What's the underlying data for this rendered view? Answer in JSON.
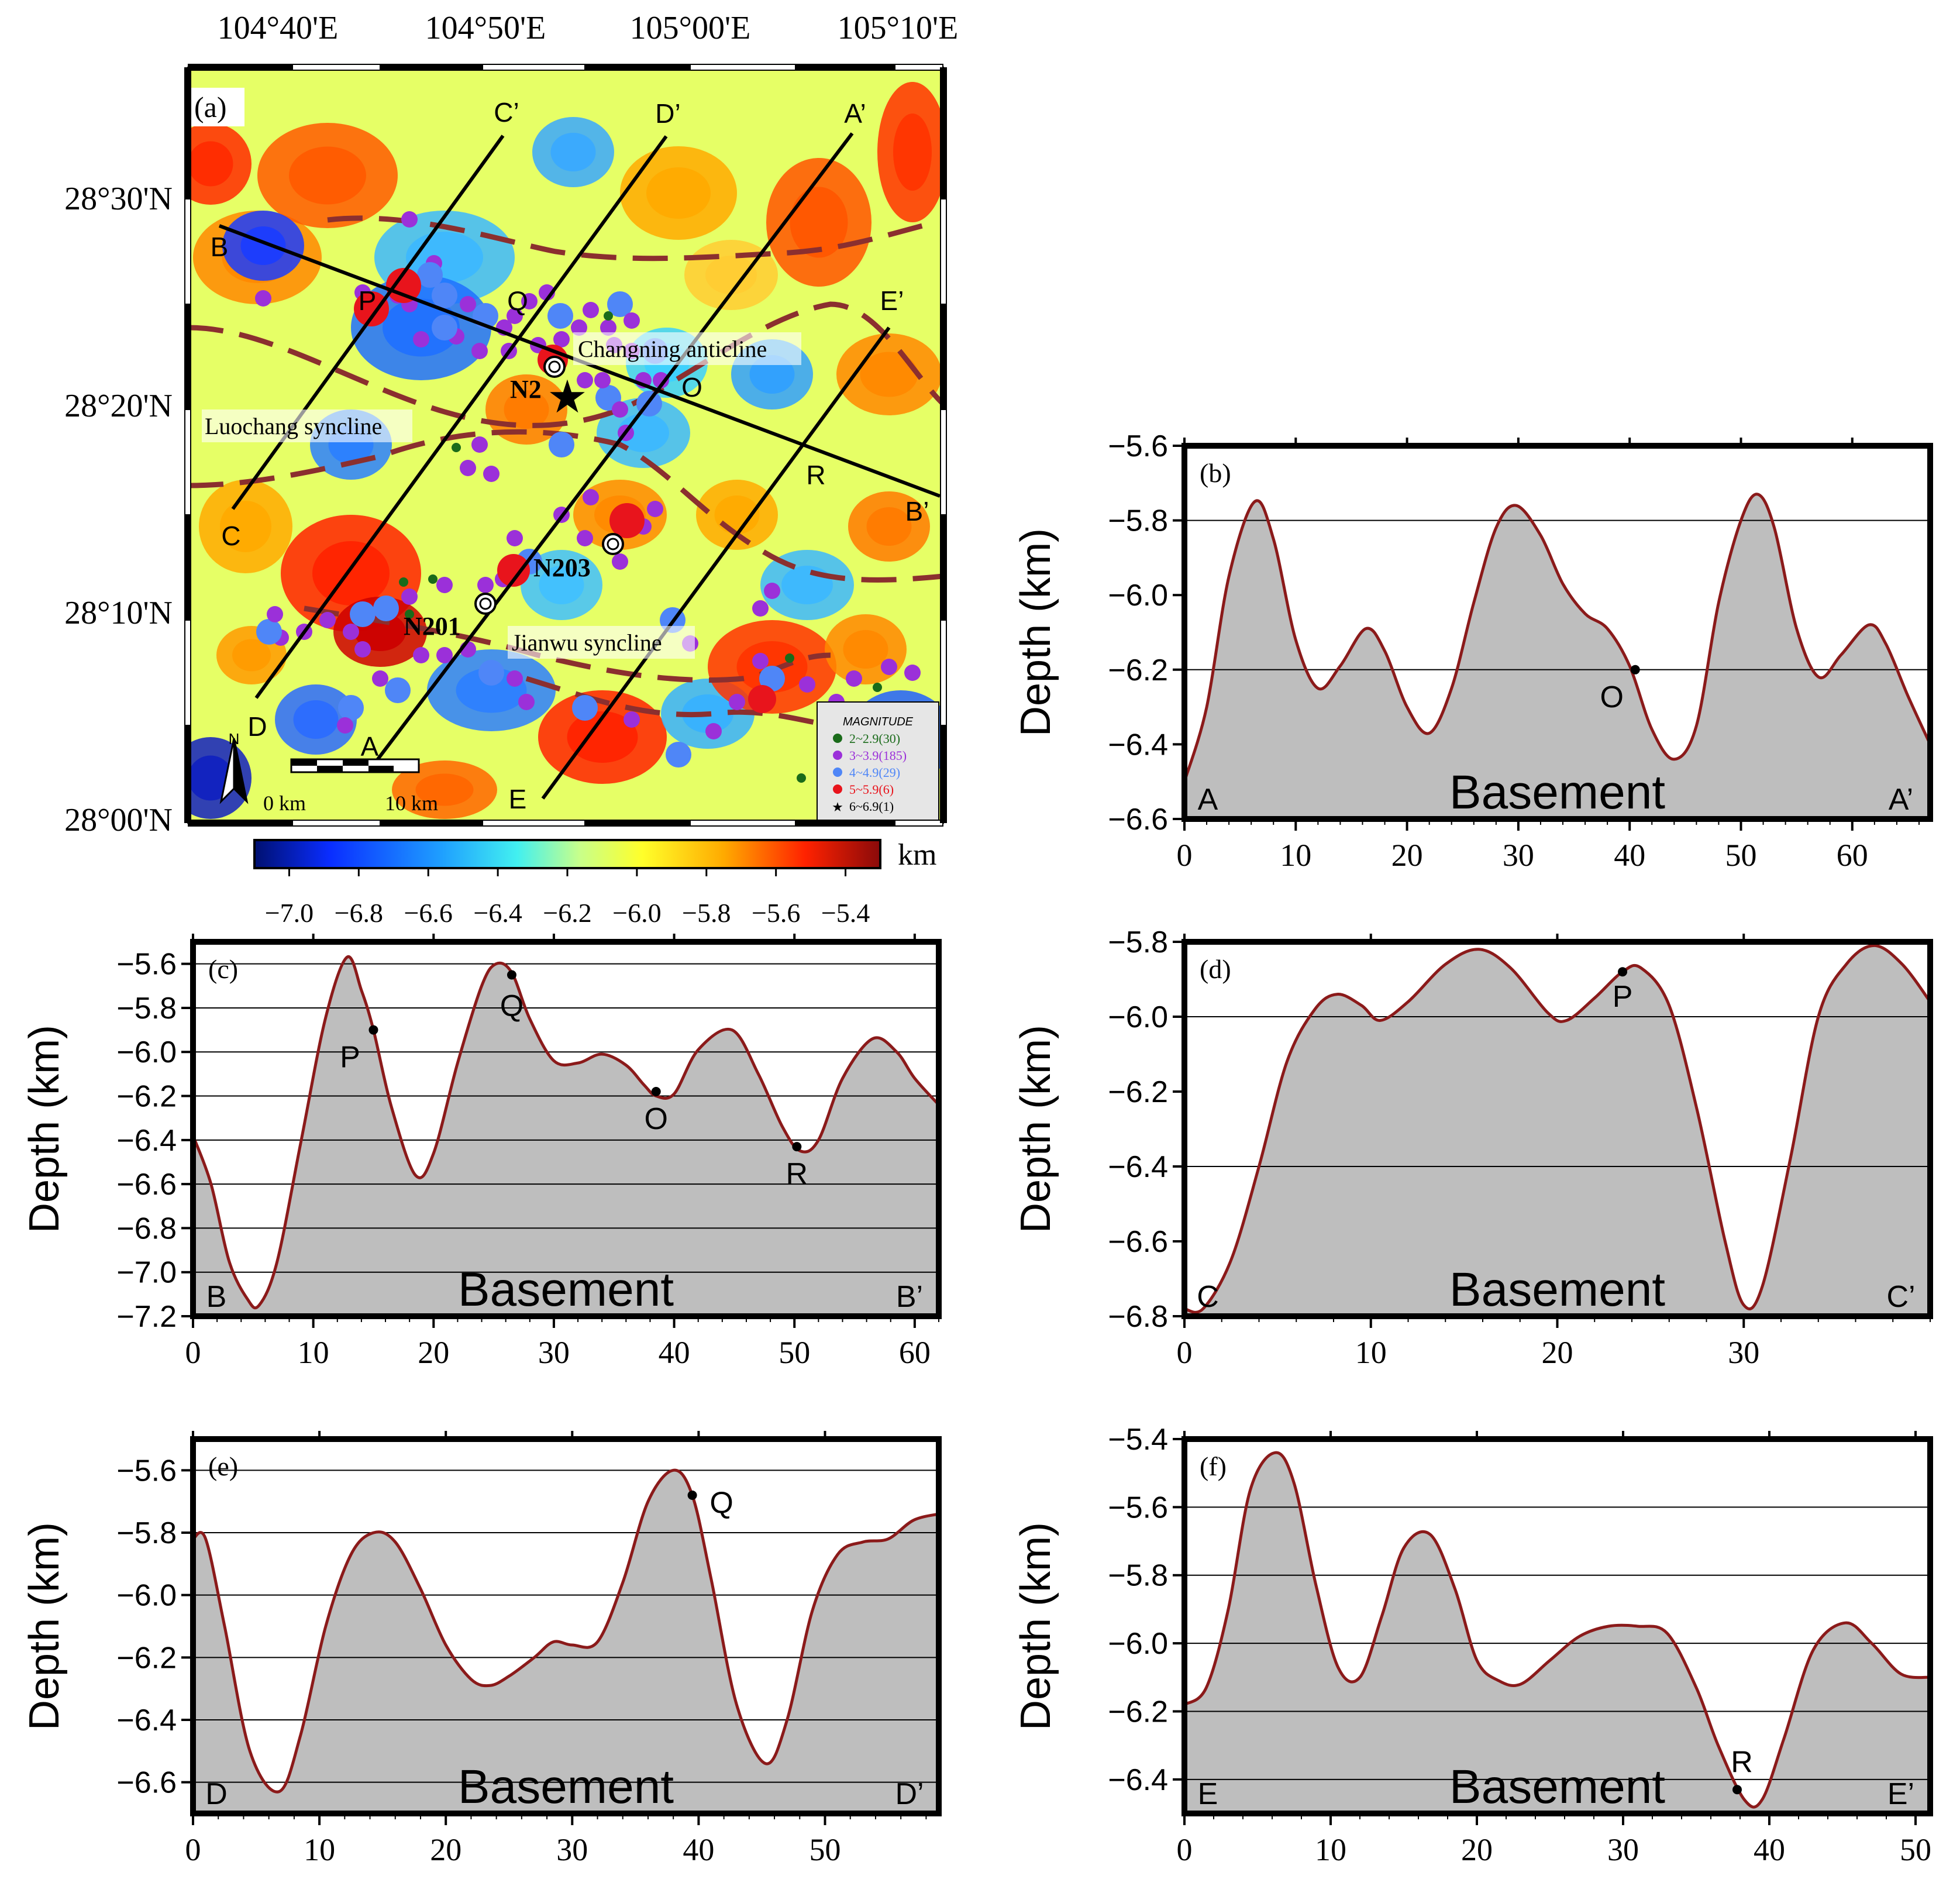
{
  "colors": {
    "curve": "#8b1a1a",
    "fill": "#bebebe",
    "fault": "#8b2f2f",
    "mag_green": "#1a6b1a",
    "mag_purple": "#9b30d9",
    "mag_blue": "#4f86f7",
    "mag_red": "#e8141c",
    "mag_black": "#000000"
  },
  "map": {
    "panel_label": "(a)",
    "lon_ticks": [
      "104°40'E",
      "104°50'E",
      "105°00'E",
      "105°10'E"
    ],
    "lat_ticks": [
      "28°30'N",
      "28°20'N",
      "28°10'N",
      "28°00'N"
    ],
    "profiles": [
      {
        "start": "A",
        "end": "A’"
      },
      {
        "start": "B",
        "end": "B’"
      },
      {
        "start": "C",
        "end": "C’"
      },
      {
        "start": "D",
        "end": "D’"
      },
      {
        "start": "E",
        "end": "E’"
      }
    ],
    "points": [
      "O",
      "P",
      "Q",
      "R"
    ],
    "structures": [
      "Changning anticline",
      "Luochang syncline",
      "Jianwu syncline"
    ],
    "wells": [
      "N2",
      "N203",
      "N201"
    ],
    "legend": {
      "title": "MAGNITUDE",
      "items": [
        {
          "label": "2~2.9(30)",
          "symbol": "green-dot-icon"
        },
        {
          "label": "3~3.9(185)",
          "symbol": "purple-dot-icon"
        },
        {
          "label": "4~4.9(29)",
          "symbol": "blue-dot-icon"
        },
        {
          "label": "5~5.9(6)",
          "symbol": "red-dot-icon"
        },
        {
          "label": "6~6.9(1)",
          "symbol": "star-icon"
        }
      ]
    },
    "scalebar": {
      "start": "0 km",
      "end": "10 km"
    },
    "north": "N",
    "colorbar": {
      "unit": "km",
      "ticks": [
        "−7.0",
        "−6.8",
        "−6.6",
        "−6.4",
        "−6.2",
        "−6.0",
        "−5.8",
        "−5.6",
        "−5.4"
      ],
      "range": [
        -7.1,
        -5.3
      ]
    }
  },
  "chart_data": [
    {
      "panel": "(b)",
      "type": "area",
      "ylabel": "Depth (km)",
      "fill_label": "Basement",
      "left_label": "A",
      "right_label": "A’",
      "xlim": [
        0,
        67
      ],
      "ylim": [
        -6.6,
        -5.6
      ],
      "xticks": [
        0,
        10,
        20,
        30,
        40,
        50,
        60
      ],
      "yticks": [
        "−5.6",
        "−5.8",
        "−6.0",
        "−6.2",
        "−6.4",
        "−6.6"
      ],
      "ytick_values": [
        -5.6,
        -5.8,
        -6.0,
        -6.2,
        -6.4,
        -6.6
      ],
      "gridlines": [
        -5.8,
        -6.2
      ],
      "x": [
        0,
        2,
        4,
        6.3,
        8,
        10,
        12,
        14,
        16.3,
        18,
        20,
        22,
        24,
        26,
        28,
        29.8,
        32,
        34,
        36,
        38,
        40,
        42,
        44,
        46,
        48,
        50,
        51.5,
        53,
        55,
        57,
        59,
        61.5,
        63,
        65,
        67
      ],
      "y": [
        -6.5,
        -6.3,
        -5.95,
        -5.75,
        -5.85,
        -6.12,
        -6.25,
        -6.19,
        -6.09,
        -6.15,
        -6.3,
        -6.37,
        -6.25,
        -6.02,
        -5.82,
        -5.76,
        -5.84,
        -5.97,
        -6.05,
        -6.09,
        -6.19,
        -6.36,
        -6.44,
        -6.35,
        -6.02,
        -5.8,
        -5.73,
        -5.82,
        -6.09,
        -6.22,
        -6.16,
        -6.08,
        -6.13,
        -6.27,
        -6.4
      ],
      "markers": [
        {
          "x": 40.5,
          "y": -6.2,
          "label": "O"
        }
      ]
    },
    {
      "panel": "(c)",
      "type": "area",
      "ylabel": "Depth (km)",
      "fill_label": "Basement",
      "left_label": "B",
      "right_label": "B’",
      "xlim": [
        0,
        62
      ],
      "ylim": [
        -7.2,
        -5.5
      ],
      "xticks": [
        0,
        10,
        20,
        30,
        40,
        50,
        60
      ],
      "yticks": [
        "−5.6",
        "−5.8",
        "−6.0",
        "−6.2",
        "−6.4",
        "−6.6",
        "−6.8",
        "−7.0",
        "−7.2"
      ],
      "ytick_values": [
        -5.6,
        -5.8,
        -6.0,
        -6.2,
        -6.4,
        -6.6,
        -6.8,
        -7.0,
        -7.2
      ],
      "gridlines": [
        -5.6,
        -5.8,
        -6.0,
        -6.2,
        -6.4,
        -6.6,
        -6.8,
        -7.0
      ],
      "x": [
        0,
        1.5,
        3,
        4.5,
        5.5,
        7,
        9,
        11,
        12.8,
        14,
        15,
        16.5,
        18.5,
        20,
        22,
        24,
        25.2,
        26.5,
        28,
        30,
        32,
        34,
        36,
        37.5,
        38.5,
        40,
        42,
        44.8,
        47,
        49,
        50.5,
        52,
        54,
        56.5,
        58.5,
        60,
        62
      ],
      "y": [
        -6.38,
        -6.6,
        -6.95,
        -7.12,
        -7.15,
        -6.95,
        -6.4,
        -5.85,
        -5.57,
        -5.72,
        -5.9,
        -6.25,
        -6.56,
        -6.46,
        -6.05,
        -5.7,
        -5.6,
        -5.64,
        -5.85,
        -6.04,
        -6.05,
        -6.01,
        -6.06,
        -6.15,
        -6.2,
        -6.19,
        -5.99,
        -5.9,
        -6.1,
        -6.34,
        -6.45,
        -6.4,
        -6.12,
        -5.94,
        -6.0,
        -6.12,
        -6.24
      ],
      "markers": [
        {
          "x": 15,
          "y": -5.9,
          "label": "P"
        },
        {
          "x": 26.5,
          "y": -5.65,
          "label": "Q"
        },
        {
          "x": 38.5,
          "y": -6.18,
          "label": "O"
        },
        {
          "x": 50.2,
          "y": -6.43,
          "label": "R"
        }
      ]
    },
    {
      "panel": "(d)",
      "type": "area",
      "ylabel": "Depth (km)",
      "fill_label": "Basement",
      "left_label": "C",
      "right_label": "C’",
      "xlim": [
        0,
        40
      ],
      "ylim": [
        -6.8,
        -5.8
      ],
      "xticks": [
        0,
        10,
        20,
        30
      ],
      "yticks": [
        "−5.8",
        "−6.0",
        "−6.2",
        "−6.4",
        "−6.6",
        "−6.8"
      ],
      "ytick_values": [
        -5.8,
        -6.0,
        -6.2,
        -6.4,
        -6.6,
        -6.8
      ],
      "gridlines": [
        -6.0,
        -6.4
      ],
      "x": [
        0,
        1,
        2.5,
        4,
        5.5,
        7,
        8.2,
        9.5,
        10.5,
        12,
        14,
        15.8,
        17.5,
        19.5,
        20.5,
        22,
        23.5,
        24.5,
        26,
        27.5,
        29,
        30,
        31,
        32.5,
        34,
        35.5,
        37,
        38.5,
        40
      ],
      "y": [
        -6.78,
        -6.78,
        -6.65,
        -6.4,
        -6.12,
        -5.98,
        -5.94,
        -5.97,
        -6.01,
        -5.96,
        -5.86,
        -5.82,
        -5.87,
        -5.99,
        -6.01,
        -5.95,
        -5.88,
        -5.87,
        -5.97,
        -6.25,
        -6.6,
        -6.77,
        -6.72,
        -6.38,
        -6.0,
        -5.86,
        -5.81,
        -5.86,
        -5.96
      ],
      "markers": [
        {
          "x": 23.5,
          "y": -5.88,
          "label": "P"
        }
      ]
    },
    {
      "panel": "(e)",
      "type": "area",
      "ylabel": "Depth (km)",
      "fill_label": "Basement",
      "left_label": "D",
      "right_label": "D’",
      "xlim": [
        0,
        59
      ],
      "ylim": [
        -6.7,
        -5.5
      ],
      "xticks": [
        0,
        10,
        20,
        30,
        40,
        50
      ],
      "yticks": [
        "−5.6",
        "−5.8",
        "−6.0",
        "−6.2",
        "−6.4",
        "−6.6"
      ],
      "ytick_values": [
        -5.6,
        -5.8,
        -6.0,
        -6.2,
        -6.4,
        -6.6
      ],
      "gridlines": [
        -5.6,
        -5.8,
        -6.0,
        -6.2,
        -6.4,
        -6.6
      ],
      "x": [
        0,
        1,
        2.5,
        4.5,
        6.8,
        8.5,
        10.5,
        12.5,
        14.3,
        16,
        18,
        20,
        22,
        23.5,
        25,
        27,
        28.5,
        30,
        32,
        34,
        36,
        38,
        39.5,
        41,
        43,
        45.3,
        47,
        49,
        51,
        53,
        55,
        57,
        59
      ],
      "y": [
        -5.82,
        -5.82,
        -6.1,
        -6.5,
        -6.63,
        -6.45,
        -6.1,
        -5.87,
        -5.8,
        -5.83,
        -5.98,
        -6.16,
        -6.27,
        -6.29,
        -6.26,
        -6.2,
        -6.15,
        -6.16,
        -6.15,
        -5.96,
        -5.7,
        -5.6,
        -5.68,
        -5.95,
        -6.35,
        -6.54,
        -6.4,
        -6.05,
        -5.87,
        -5.83,
        -5.82,
        -5.76,
        -5.74
      ],
      "markers": [
        {
          "x": 39.5,
          "y": -5.68,
          "label": "Q"
        }
      ]
    },
    {
      "panel": "(f)",
      "type": "area",
      "ylabel": "Depth (km)",
      "fill_label": "Basement",
      "left_label": "E",
      "right_label": "E’",
      "xlim": [
        0,
        51
      ],
      "ylim": [
        -6.5,
        -5.4
      ],
      "xticks": [
        0,
        10,
        20,
        30,
        40,
        50
      ],
      "yticks": [
        "−5.4",
        "−5.6",
        "−5.8",
        "−6.0",
        "−6.2",
        "−6.4"
      ],
      "ytick_values": [
        -5.4,
        -5.6,
        -5.8,
        -6.0,
        -6.2,
        -6.4
      ],
      "gridlines": [
        -5.6,
        -5.8,
        -6.0,
        -6.2,
        -6.4
      ],
      "x": [
        0,
        1.5,
        3,
        4.5,
        6.2,
        7.5,
        9,
        10.5,
        12,
        13.5,
        15,
        16.8,
        18.5,
        20,
        21.5,
        23,
        25,
        27,
        29,
        31,
        33,
        35,
        36.5,
        38.3,
        39.5,
        41,
        43,
        45.2,
        47,
        49,
        51
      ],
      "y": [
        -6.18,
        -6.13,
        -5.9,
        -5.55,
        -5.44,
        -5.53,
        -5.83,
        -6.07,
        -6.1,
        -5.92,
        -5.72,
        -5.68,
        -5.84,
        -6.05,
        -6.11,
        -6.12,
        -6.05,
        -5.98,
        -5.95,
        -5.95,
        -5.97,
        -6.13,
        -6.3,
        -6.46,
        -6.46,
        -6.28,
        -6.02,
        -5.94,
        -6.0,
        -6.09,
        -6.1
      ],
      "markers": [
        {
          "x": 37.8,
          "y": -6.43,
          "label": "R"
        }
      ]
    }
  ]
}
